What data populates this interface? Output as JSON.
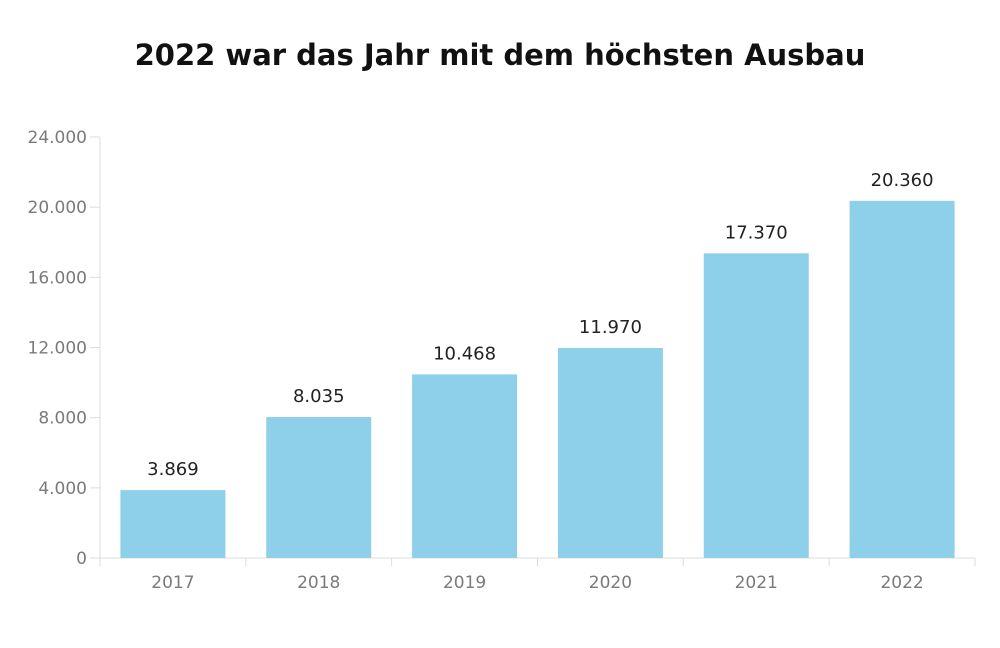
{
  "chart_data": {
    "type": "bar",
    "title": "2022 war das Jahr mit dem höchsten Ausbau",
    "xlabel": "",
    "ylabel": "",
    "categories": [
      "2017",
      "2018",
      "2019",
      "2020",
      "2021",
      "2022"
    ],
    "values": [
      3869,
      8035,
      10468,
      11970,
      17370,
      20360
    ],
    "value_labels": [
      "3.869",
      "8.035",
      "10.468",
      "11.970",
      "17.370",
      "20.360"
    ],
    "ylim": [
      0,
      24000
    ],
    "yticks": [
      0,
      4000,
      8000,
      12000,
      16000,
      20000,
      24000
    ],
    "ytick_labels": [
      "0",
      "4.000",
      "8.000",
      "12.000",
      "16.000",
      "20.000",
      "24.000"
    ],
    "grid": false,
    "legend": "none",
    "bar_color": "#8ecfe9",
    "axis_color": "#dcdcdc"
  }
}
